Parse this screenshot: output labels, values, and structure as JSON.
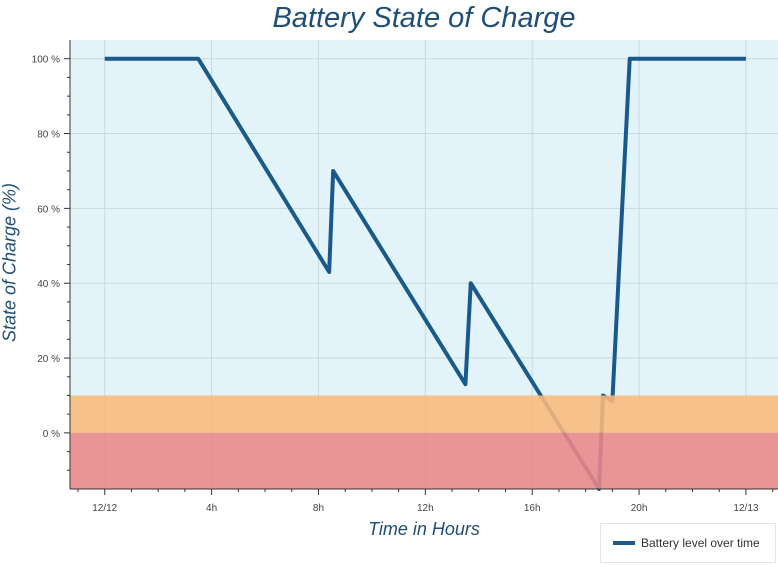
{
  "chart_data": {
    "type": "line",
    "title": "Battery State of Charge",
    "xlabel": "Time in Hours",
    "ylabel": "State of Charge (%)",
    "xlim": [
      -1.3,
      25.2
    ],
    "ylim": [
      -15,
      105
    ],
    "x_ticks": [
      {
        "v": 0,
        "label": "12/12"
      },
      {
        "v": 4,
        "label": "4h"
      },
      {
        "v": 8,
        "label": "8h"
      },
      {
        "v": 12,
        "label": "12h"
      },
      {
        "v": 16,
        "label": "16h"
      },
      {
        "v": 20,
        "label": "20h"
      },
      {
        "v": 24,
        "label": "12/13"
      }
    ],
    "y_ticks": [
      {
        "v": 0,
        "label": "0 %"
      },
      {
        "v": 20,
        "label": "20 %"
      },
      {
        "v": 40,
        "label": "40 %"
      },
      {
        "v": 60,
        "label": "60 %"
      },
      {
        "v": 80,
        "label": "80 %"
      },
      {
        "v": 100,
        "label": "100 %"
      }
    ],
    "grid": true,
    "bands": [
      {
        "name": "low",
        "from": 0,
        "to": 10,
        "color": "#f9b97c"
      },
      {
        "name": "critical",
        "from": -15,
        "to": 0,
        "color": "#e98888"
      }
    ],
    "background": "#e2f4fa",
    "series": [
      {
        "name": "Battery level over time",
        "color": "#1a5a8a",
        "x": [
          0,
          3.5,
          8.4,
          8.55,
          13.5,
          13.7,
          18.5,
          18.65,
          19.0,
          19.65,
          24
        ],
        "y": [
          100,
          100,
          43,
          70,
          13,
          40,
          -15,
          10,
          8.5,
          100,
          100
        ]
      }
    ],
    "legend": "bottom-right"
  }
}
